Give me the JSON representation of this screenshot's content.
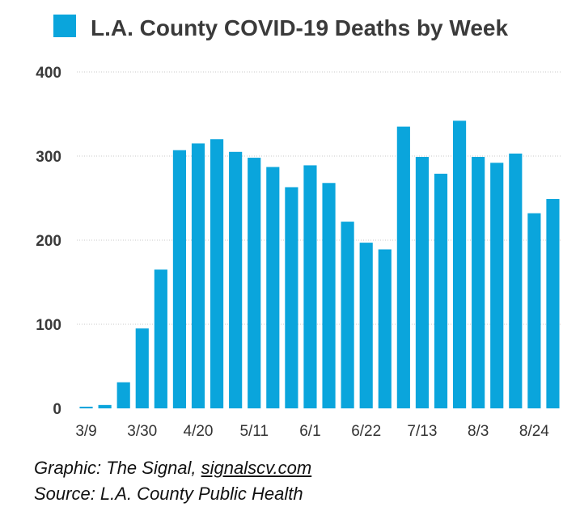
{
  "chart_data": {
    "type": "bar",
    "title": "L.A. County COVID-19 Deaths by Week",
    "series": [
      {
        "name": "L.A. County COVID-19 Deaths by Week",
        "color": "#0aa5dc",
        "values": [
          2,
          4,
          31,
          95,
          165,
          307,
          315,
          320,
          305,
          298,
          287,
          263,
          289,
          268,
          222,
          197,
          189,
          335,
          299,
          279,
          342,
          299,
          292,
          303,
          232,
          249
        ]
      }
    ],
    "x_dates": [
      "3/9",
      "3/16",
      "3/23",
      "3/30",
      "4/6",
      "4/13",
      "4/20",
      "4/27",
      "5/4",
      "5/11",
      "5/18",
      "5/25",
      "6/1",
      "6/8",
      "6/15",
      "6/22",
      "6/29",
      "7/6",
      "7/13",
      "7/20",
      "7/27",
      "8/3",
      "8/10",
      "8/17",
      "8/24",
      "8/31"
    ],
    "x_tick_labels": [
      "3/9",
      "3/30",
      "4/20",
      "5/11",
      "6/1",
      "6/22",
      "7/13",
      "8/3",
      "8/24"
    ],
    "x_tick_every": 3,
    "y_tick_labels": [
      "0",
      "100",
      "200",
      "300",
      "400"
    ],
    "ylim": [
      0,
      400
    ],
    "grid": true,
    "legend": "top-center",
    "xlabel": "",
    "ylabel": ""
  },
  "credits": {
    "graphic_prefix": "Graphic: The Signal, ",
    "graphic_link": "signalscv.com",
    "source": "Source: L.A. County Public Health"
  }
}
